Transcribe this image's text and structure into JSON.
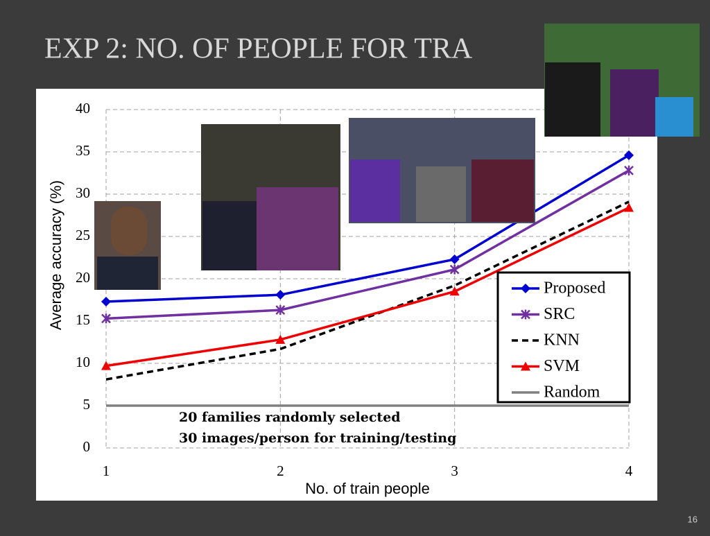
{
  "title": "EXP 2: NO. OF PEOPLE FOR TRA",
  "page_number": "16",
  "chart_data": {
    "type": "line",
    "xlabel": "No. of train people",
    "ylabel": "Average accuracy (%)",
    "annotations": [
      "20 families randomly selected",
      "30 images/person for training/testing"
    ],
    "x": [
      1,
      2,
      3,
      4
    ],
    "xlim": [
      1,
      4
    ],
    "xticks": [
      1,
      2,
      3,
      4
    ],
    "ylim": [
      0,
      40
    ],
    "yticks": [
      0,
      5,
      10,
      15,
      20,
      25,
      30,
      35,
      40
    ],
    "grid": true,
    "legend": "lower right",
    "series": [
      {
        "name": "Proposed",
        "color": "#0000d0",
        "marker": "diamond",
        "dash": "solid",
        "values": [
          17.3,
          18.1,
          22.3,
          34.6
        ]
      },
      {
        "name": "SRC",
        "color": "#7030a0",
        "marker": "asterisk",
        "dash": "solid",
        "values": [
          15.3,
          16.3,
          21.1,
          32.8
        ]
      },
      {
        "name": "KNN",
        "color": "#000000",
        "marker": "none",
        "dash": "dashed",
        "values": [
          8.1,
          11.7,
          19.2,
          29.1
        ]
      },
      {
        "name": "SVM",
        "color": "#ee0000",
        "marker": "triangle",
        "dash": "solid",
        "values": [
          9.7,
          12.8,
          18.5,
          28.4
        ]
      },
      {
        "name": "Random",
        "color": "#808080",
        "marker": "none",
        "dash": "solid",
        "values": [
          5,
          5,
          5,
          5
        ]
      }
    ]
  }
}
